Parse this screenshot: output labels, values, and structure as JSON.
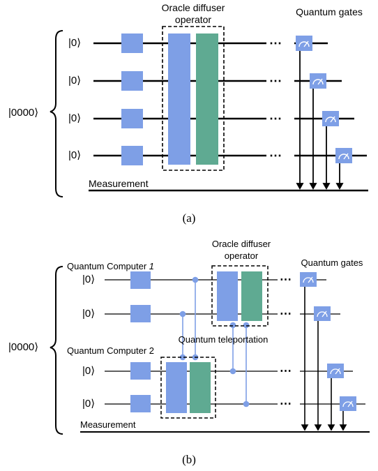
{
  "colors": {
    "blue_gate": "#7e9fe6",
    "teal_gate": "#5faa92",
    "wire": "#000000",
    "teleport_link": "#7e9fe6"
  },
  "panel_a": {
    "input_state": "|0000⟩",
    "qubit_labels": [
      "|0⟩",
      "|0⟩",
      "|0⟩",
      "|0⟩"
    ],
    "oracle_label_line1": "Oracle diffuser",
    "oracle_label_line2": "operator",
    "gates_label": "Quantum gates",
    "measurement_label": "Measurement",
    "ellipsis": "⋯",
    "caption": "(a)",
    "icons": [
      "measure-meter-icon"
    ]
  },
  "panel_b": {
    "input_state": "|0000⟩",
    "computer1_label": "Quantum Computer ",
    "computer1_num": "1",
    "computer2_label": "Quantum Computer 2",
    "qubit_labels": [
      "|0⟩",
      "|0⟩",
      "|0⟩",
      "|0⟩"
    ],
    "oracle_label_line1": "Oracle diffuser",
    "oracle_label_line2": "operator",
    "gates_label": "Quantum gates",
    "teleportation_label": "Quantum teleportation",
    "measurement_label": "Measurement",
    "ellipsis": "⋯",
    "caption": "(b)",
    "icons": [
      "measure-meter-icon"
    ]
  }
}
